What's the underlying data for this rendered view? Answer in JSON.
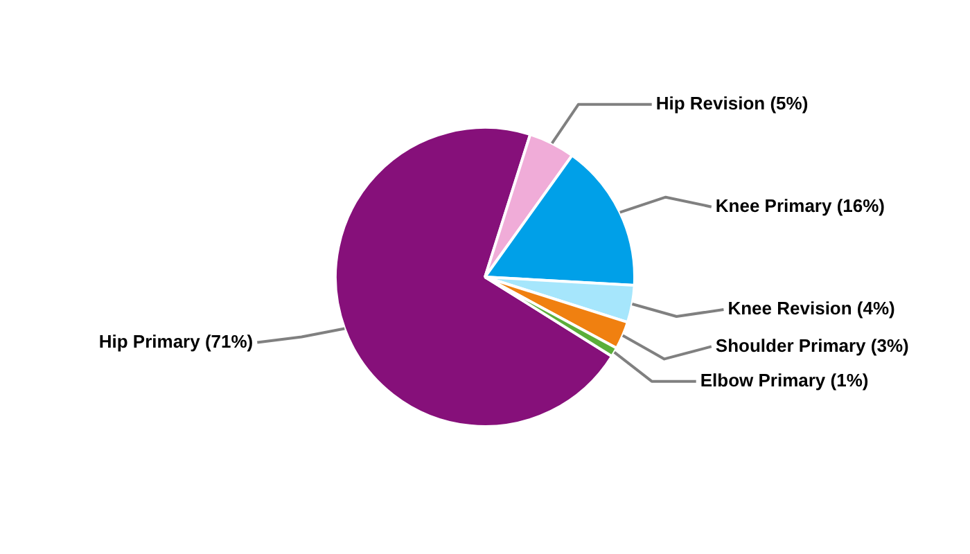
{
  "chart_data": {
    "type": "pie",
    "categories": [
      "Hip Primary",
      "Hip Revision",
      "Knee Primary",
      "Knee Revision",
      "Shoulder Primary",
      "Elbow Primary"
    ],
    "values": [
      71,
      5,
      16,
      4,
      3,
      1
    ],
    "colors": [
      "#86107a",
      "#f0acd8",
      "#00a0e8",
      "#a6e6fc",
      "#f08010",
      "#5bae3a"
    ],
    "value_labels": [
      "(71%)",
      "(5%)",
      "(16%)",
      "(4%)",
      "(3%)",
      "(1%)"
    ]
  }
}
